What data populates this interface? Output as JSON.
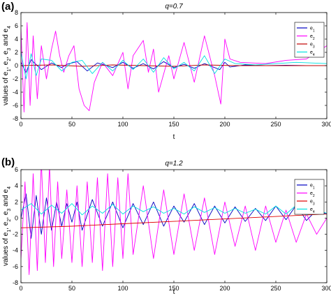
{
  "chart_data": [
    {
      "panel_label": "(a)",
      "type": "line",
      "title": "q=0.7",
      "xlabel": "t",
      "ylabel": "values of e1, e2, e3 and e4",
      "xlim": [
        0,
        300
      ],
      "ylim": [
        -8,
        8
      ],
      "xticks": [
        "0",
        "50",
        "100",
        "150",
        "200",
        "250",
        "300"
      ],
      "yticks": [
        "-8",
        "-6",
        "-4",
        "-2",
        "0",
        "2",
        "4",
        "6",
        "8"
      ],
      "grid": false,
      "legend_position": "top-right",
      "series": [
        {
          "name": "e1",
          "color": "#0000c0",
          "x": [
            0,
            5,
            10,
            20,
            30,
            40,
            45,
            55,
            65,
            75,
            90,
            100,
            110,
            120,
            130,
            140,
            150,
            160,
            170,
            180,
            195,
            200,
            205,
            220,
            240,
            260,
            280,
            300
          ],
          "y": [
            0.5,
            -1.0,
            0.9,
            -0.6,
            0.4,
            -0.3,
            0.2,
            0.6,
            -0.8,
            0.4,
            -0.3,
            0.5,
            -0.4,
            0.3,
            -0.5,
            0.6,
            -0.3,
            0.2,
            -0.4,
            0.3,
            -0.6,
            0.5,
            -0.2,
            0.1,
            0.0,
            0.05,
            0.0,
            0.0
          ]
        },
        {
          "name": "e2",
          "color": "#ff00ff",
          "x": [
            0,
            3,
            6,
            9,
            12,
            16,
            20,
            25,
            30,
            34,
            38,
            42,
            47,
            52,
            57,
            62,
            67,
            72,
            80,
            90,
            100,
            105,
            110,
            120,
            125,
            130,
            135,
            145,
            150,
            160,
            170,
            180,
            190,
            196,
            200,
            205,
            215,
            240,
            260,
            280,
            300
          ],
          "y": [
            5.5,
            -7.0,
            6.5,
            -6.0,
            4.5,
            -5.0,
            3.0,
            -2.0,
            2.5,
            5.2,
            1.5,
            -1.0,
            1.5,
            3.0,
            -3.5,
            -6.0,
            -6.8,
            -2.5,
            0.5,
            -1.5,
            2.0,
            -3.5,
            1.5,
            3.8,
            -1.0,
            2.5,
            -4.0,
            1.5,
            -2.0,
            3.5,
            -2.5,
            4.5,
            -1.5,
            -5.8,
            4.0,
            1.0,
            0.5,
            0.3,
            0.8,
            1.0,
            3.0
          ]
        },
        {
          "name": "e3",
          "color": "#c00000",
          "x": [
            0,
            30,
            60,
            90,
            120,
            150,
            180,
            210,
            240,
            270,
            300
          ],
          "y": [
            0.0,
            0.1,
            -0.1,
            0.1,
            0.0,
            -0.1,
            0.1,
            0.0,
            0.0,
            0.0,
            0.0
          ]
        },
        {
          "name": "e4",
          "color": "#00e0e0",
          "x": [
            0,
            5,
            10,
            15,
            20,
            30,
            40,
            50,
            60,
            70,
            80,
            90,
            100,
            110,
            120,
            130,
            140,
            150,
            160,
            170,
            180,
            190,
            200,
            210,
            230,
            250,
            270,
            300
          ],
          "y": [
            2.0,
            -2.0,
            1.8,
            -1.5,
            1.0,
            0.8,
            -0.8,
            0.5,
            0.8,
            -1.2,
            0.5,
            -0.8,
            0.8,
            -0.6,
            1.0,
            -1.0,
            1.2,
            -0.5,
            0.5,
            -0.8,
            1.5,
            -1.2,
            1.0,
            0.3,
            0.1,
            0.3,
            0.5,
            0.3
          ]
        }
      ]
    },
    {
      "panel_label": "(b)",
      "type": "line",
      "title": "q=1.2",
      "xlabel": "t",
      "ylabel": "values of e1, e2, e3 and e4",
      "xlim": [
        0,
        300
      ],
      "ylim": [
        -8,
        6
      ],
      "xticks": [
        "0",
        "50",
        "100",
        "150",
        "200",
        "250",
        "300"
      ],
      "yticks": [
        "-8",
        "-6",
        "-4",
        "-2",
        "0",
        "2",
        "4",
        "6"
      ],
      "grid": false,
      "legend_position": "top-right",
      "series": [
        {
          "name": "e1",
          "color": "#0000c0",
          "x": [
            0,
            5,
            10,
            15,
            20,
            25,
            30,
            35,
            40,
            45,
            50,
            55,
            60,
            70,
            80,
            90,
            100,
            110,
            120,
            130,
            140,
            150,
            160,
            170,
            180,
            190,
            200,
            210,
            220,
            230,
            240,
            250,
            260,
            270,
            280,
            290,
            300
          ],
          "y": [
            0.0,
            3.0,
            -2.5,
            2.8,
            -2.0,
            2.5,
            -1.5,
            2.0,
            -1.0,
            1.8,
            -0.5,
            2.0,
            -1.5,
            2.3,
            -1.0,
            2.0,
            -1.2,
            1.8,
            -0.8,
            2.0,
            -1.0,
            1.5,
            -0.5,
            1.8,
            -0.8,
            1.5,
            -0.6,
            1.4,
            -0.4,
            1.2,
            -0.3,
            1.5,
            -0.2,
            1.6,
            -0.3,
            1.0,
            0.5
          ]
        },
        {
          "name": "e2",
          "color": "#ff00ff",
          "x": [
            0,
            4,
            8,
            12,
            16,
            20,
            24,
            28,
            32,
            36,
            40,
            45,
            50,
            55,
            60,
            65,
            70,
            75,
            80,
            85,
            90,
            95,
            100,
            105,
            110,
            120,
            130,
            140,
            150,
            160,
            170,
            180,
            190,
            200,
            210,
            220,
            230,
            240,
            250,
            260,
            270,
            280,
            290,
            300
          ],
          "y": [
            -5.0,
            4.5,
            -7.0,
            5.5,
            -6.5,
            7.0,
            -5.5,
            6.5,
            -6.0,
            4.5,
            -5.0,
            3.5,
            -5.5,
            4.0,
            -6.0,
            4.5,
            -5.5,
            5.0,
            -6.5,
            5.5,
            -6.0,
            5.0,
            -5.0,
            5.5,
            -4.5,
            4.0,
            -5.0,
            3.5,
            -4.5,
            3.0,
            -4.0,
            2.5,
            -4.5,
            2.0,
            -3.5,
            1.5,
            -4.0,
            1.5,
            -3.0,
            1.0,
            -3.0,
            0.5,
            -2.0,
            0.0
          ]
        },
        {
          "name": "e3",
          "color": "#e00000",
          "x": [
            0,
            50,
            100,
            150,
            200,
            250,
            300
          ],
          "y": [
            -1.2,
            -1.0,
            -0.7,
            -0.4,
            -0.1,
            0.2,
            0.5
          ]
        },
        {
          "name": "e4",
          "color": "#00e0e0",
          "x": [
            0,
            10,
            20,
            30,
            40,
            50,
            60,
            70,
            80,
            90,
            100,
            110,
            120,
            130,
            140,
            150,
            160,
            170,
            180,
            190,
            200,
            210,
            220,
            230,
            240,
            250,
            260,
            270,
            280,
            290,
            300
          ],
          "y": [
            1.0,
            1.8,
            0.5,
            1.6,
            0.6,
            1.8,
            0.4,
            1.5,
            0.6,
            1.7,
            0.5,
            1.5,
            0.8,
            1.4,
            0.6,
            1.2,
            0.5,
            1.4,
            0.7,
            1.3,
            0.6,
            1.2,
            0.6,
            1.1,
            0.5,
            1.5,
            0.5,
            1.6,
            0.4,
            1.0,
            0.6
          ]
        }
      ]
    }
  ]
}
